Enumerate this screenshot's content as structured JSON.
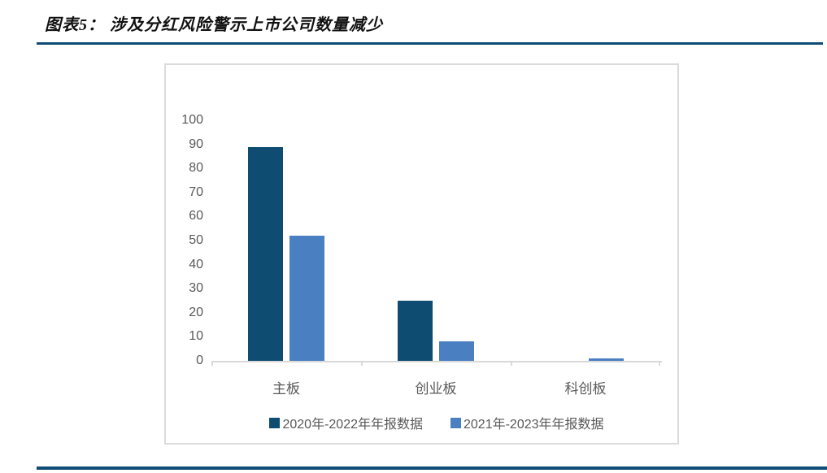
{
  "title": "图表5： 涉及分红风险警示上市公司数量减少",
  "rules": {
    "color": "#0E4C75"
  },
  "chart_data": {
    "type": "bar",
    "title": "",
    "categories": [
      "主板",
      "创业板",
      "科创板"
    ],
    "series": [
      {
        "name": "2020年-2022年年报数据",
        "color": "#0E4C72",
        "values": [
          89,
          25,
          0
        ]
      },
      {
        "name": "2021年-2023年年报数据",
        "color": "#4A80C2",
        "values": [
          52,
          8,
          1
        ]
      }
    ],
    "xlabel": "",
    "ylabel": "",
    "ylim": [
      0,
      100
    ],
    "ytick_step": 10,
    "grid": false,
    "legend_position": "bottom",
    "axis_color": "#D9D9D9",
    "label_color": "#595959"
  }
}
